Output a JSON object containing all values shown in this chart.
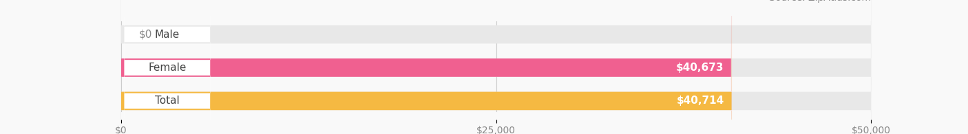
{
  "categories": [
    "Male",
    "Female",
    "Total"
  ],
  "values": [
    0,
    40673,
    40714
  ],
  "bar_colors": [
    "#a8c8e8",
    "#f06090",
    "#f5b942"
  ],
  "label_colors": [
    "#a8c8e8",
    "#f06090",
    "#f5b942"
  ],
  "bg_color": "#f0f0f0",
  "bar_bg_color": "#e8e8e8",
  "xlim": [
    0,
    50000
  ],
  "xticks": [
    0,
    25000,
    50000
  ],
  "xtick_labels": [
    "$0",
    "$25,000",
    "$50,000"
  ],
  "value_labels": [
    "$0",
    "$40,673",
    "$40,714"
  ],
  "title_fontsize": 15,
  "label_fontsize": 11,
  "tick_fontsize": 10,
  "source_fontsize": 10,
  "bar_height": 0.55,
  "figure_bg": "#f9f9f9"
}
